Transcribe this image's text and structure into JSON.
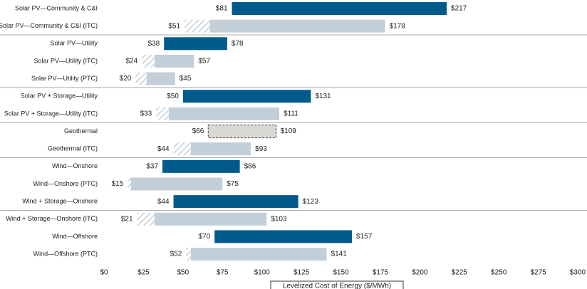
{
  "chart_data": {
    "type": "range-bar",
    "categories": [
      "Solar PV—Community & C&I",
      "Solar PV—Community & C&I (ITC)",
      "Solar PV—Utility",
      "Solar PV—Utility (ITC)",
      "Solar PV—Utility (PTC)",
      "Solar PV + Storage—Utility",
      "Solar PV + Storage—Utility (ITC)",
      "Geothermal",
      "Geothermal (ITC)",
      "Wind—Onshore",
      "Wind—Onshore (PTC)",
      "Wind + Storage—Onshore",
      "Wind + Storage—Onshore (ITC)",
      "Wind—Offshore",
      "Wind—Offshore (PTC)"
    ],
    "low": [
      81,
      51,
      38,
      24,
      20,
      50,
      33,
      66,
      44,
      37,
      15,
      44,
      21,
      70,
      52
    ],
    "low_labels": [
      "$81",
      "$51",
      "$38",
      "$24",
      "$20",
      "$50",
      "$33",
      "$66",
      "$44",
      "$37",
      "$15",
      "$44",
      "$21",
      "$70",
      "$52"
    ],
    "high": [
      217,
      178,
      78,
      57,
      45,
      131,
      111,
      109,
      93,
      86,
      75,
      123,
      103,
      157,
      141
    ],
    "high_labels": [
      "$217",
      "$178",
      "$78",
      "$57",
      "$45",
      "$131",
      "$111",
      "$109",
      "$93",
      "$86",
      "$75",
      "$123",
      "$103",
      "$157",
      "$141"
    ],
    "solid_from": [
      null,
      67,
      null,
      32,
      27,
      null,
      41,
      null,
      55,
      null,
      17,
      null,
      32,
      null,
      55
    ],
    "colors": [
      "#005b8c",
      "#c2cfd9",
      "#005b8c",
      "#c2cfd9",
      "#c2cfd9",
      "#005b8c",
      "#c2cfd9",
      "#d9d8d4",
      "#c2cfd9",
      "#005b8c",
      "#c2cfd9",
      "#005b8c",
      "#c2cfd9",
      "#005b8c",
      "#c2cfd9"
    ],
    "dashed": [
      7
    ],
    "xlabel": "Levelized Cost of Energy ($/MWh)",
    "xlim": [
      0,
      300
    ],
    "xticks": [
      {
        "value": 0,
        "label": "$0"
      },
      {
        "value": 25,
        "label": "$25"
      },
      {
        "value": 50,
        "label": "$50"
      },
      {
        "value": 75,
        "label": "$75"
      },
      {
        "value": 100,
        "label": "$100"
      },
      {
        "value": 125,
        "label": "$125"
      },
      {
        "value": 150,
        "label": "$150"
      },
      {
        "value": 175,
        "label": "$175"
      },
      {
        "value": 200,
        "label": "$200"
      },
      {
        "value": 225,
        "label": "$225"
      },
      {
        "value": 250,
        "label": "$250"
      },
      {
        "value": 275,
        "label": "$275"
      },
      {
        "value": 300,
        "label": "$300"
      }
    ]
  }
}
